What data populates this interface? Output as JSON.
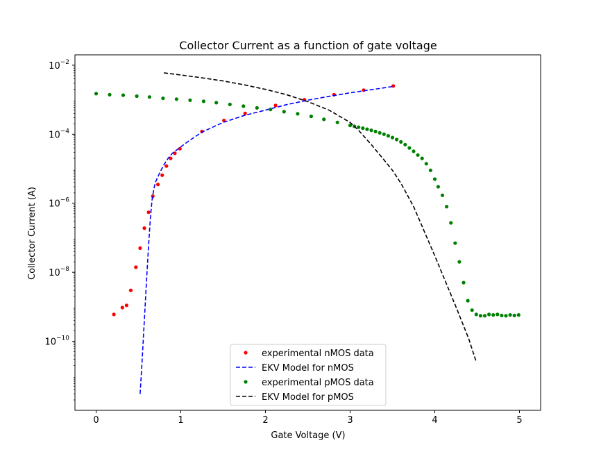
{
  "chart_data": {
    "type": "scatter",
    "title": "Collector Current as a function of gate voltage",
    "xlabel": "Gate Voltage (V)",
    "ylabel": "Collector Current (A)",
    "xlim": [
      -0.25,
      5.25
    ],
    "ylim_log10": [
      -12.0,
      -1.7
    ],
    "yscale": "log",
    "grid": false,
    "legend_position": "lower-center",
    "x_ticks": [
      {
        "value": 0,
        "label": "0"
      },
      {
        "value": 1,
        "label": "1"
      },
      {
        "value": 2,
        "label": "2"
      },
      {
        "value": 3,
        "label": "3"
      },
      {
        "value": 4,
        "label": "4"
      },
      {
        "value": 5,
        "label": "5"
      }
    ],
    "y_ticks": [
      {
        "exp": -10,
        "base": "10",
        "sup": "−10"
      },
      {
        "exp": -8,
        "base": "10",
        "sup": "−8"
      },
      {
        "exp": -6,
        "base": "10",
        "sup": "−6"
      },
      {
        "exp": -4,
        "base": "10",
        "sup": "−4"
      },
      {
        "exp": -2,
        "base": "10",
        "sup": "−2"
      }
    ],
    "series": [
      {
        "name": "experimental nMOS data",
        "kind": "points",
        "color": "#ff0000",
        "x": [
          0.21,
          0.31,
          0.36,
          0.41,
          0.47,
          0.52,
          0.57,
          0.62,
          0.67,
          0.73,
          0.78,
          0.83,
          0.88,
          0.93,
          0.99,
          1.25,
          1.51,
          1.76,
          2.12,
          2.46,
          2.81,
          3.16,
          3.51
        ],
        "y": [
          6e-10,
          9.5e-10,
          1.1e-09,
          3e-09,
          1.4e-08,
          5e-08,
          1.9e-07,
          5.5e-07,
          1.6e-06,
          3.5e-06,
          6.5e-06,
          1.2e-05,
          2e-05,
          2.8e-05,
          3.8e-05,
          0.00012,
          0.00025,
          0.0004,
          0.00068,
          0.001,
          0.0014,
          0.0019,
          0.0025
        ]
      },
      {
        "name": "EKV Model for nMOS",
        "kind": "line",
        "dash": "dashed",
        "color": "#0000ff",
        "x": [
          0.52,
          0.54,
          0.56,
          0.58,
          0.6,
          0.62,
          0.64,
          0.66,
          0.68,
          0.7,
          0.75,
          0.8,
          0.85,
          0.9,
          1.0,
          1.1,
          1.25,
          1.5,
          1.75,
          2.0,
          2.25,
          2.5,
          2.75,
          3.0,
          3.25,
          3.5
        ],
        "y": [
          3e-12,
          2e-11,
          1.5e-10,
          1.2e-09,
          9e-09,
          6e-08,
          3.5e-07,
          1.2e-06,
          2.5e-06,
          4e-06,
          7.5e-06,
          1.3e-05,
          2e-05,
          2.8e-05,
          4.3e-05,
          6.5e-05,
          0.000115,
          0.00022,
          0.00035,
          0.0005,
          0.00072,
          0.00097,
          0.00125,
          0.00158,
          0.00195,
          0.0024
        ]
      },
      {
        "name": "experimental pMOS data",
        "kind": "points",
        "color": "#008000",
        "x": [
          0.0,
          0.16,
          0.32,
          0.48,
          0.63,
          0.79,
          0.95,
          1.11,
          1.27,
          1.42,
          1.58,
          1.74,
          1.9,
          2.06,
          2.22,
          2.38,
          2.54,
          2.69,
          2.85,
          3.0,
          3.05,
          3.1,
          3.15,
          3.2,
          3.25,
          3.3,
          3.35,
          3.4,
          3.45,
          3.5,
          3.55,
          3.6,
          3.65,
          3.7,
          3.75,
          3.8,
          3.85,
          3.9,
          3.95,
          4.0,
          4.04,
          4.09,
          4.14,
          4.19,
          4.24,
          4.29,
          4.34,
          4.39,
          4.44,
          4.49,
          4.54,
          4.59,
          4.64,
          4.69,
          4.74,
          4.79,
          4.84,
          4.89,
          4.94,
          4.99
        ],
        "y": [
          0.0015,
          0.0014,
          0.00135,
          0.00127,
          0.0012,
          0.0011,
          0.00104,
          0.00097,
          0.0009,
          0.00082,
          0.00073,
          0.00065,
          0.00058,
          0.00052,
          0.00045,
          0.00039,
          0.00033,
          0.00027,
          0.00022,
          0.00018,
          0.00017,
          0.00016,
          0.00015,
          0.00014,
          0.00013,
          0.00012,
          0.00011,
          0.0001,
          9e-05,
          8e-05,
          7e-05,
          6e-05,
          5e-05,
          4e-05,
          3.2e-05,
          2.5e-05,
          2e-05,
          1.4e-05,
          9e-06,
          5e-06,
          3e-06,
          1.7e-06,
          8e-07,
          2.7e-07,
          7e-08,
          2e-08,
          5e-09,
          1.5e-09,
          8e-10,
          6e-10,
          5.5e-10,
          5.5e-10,
          6e-10,
          5.8e-10,
          6e-10,
          5.6e-10,
          5.5e-10,
          5.8e-10,
          5.6e-10,
          5.8e-10
        ]
      },
      {
        "name": "EKV Model for pMOS",
        "kind": "line",
        "dash": "dashed",
        "color": "#000000",
        "x": [
          0.8,
          1.0,
          1.25,
          1.5,
          1.75,
          2.0,
          2.25,
          2.5,
          2.75,
          3.0,
          3.1,
          3.25,
          3.4,
          3.5,
          3.6,
          3.75,
          4.0,
          4.25,
          4.4,
          4.49
        ],
        "y": [
          0.006,
          0.0052,
          0.0043,
          0.0035,
          0.0027,
          0.002,
          0.0014,
          0.00088,
          0.0005,
          0.00022,
          0.00013,
          5e-05,
          1.8e-05,
          9e-06,
          3.8e-06,
          8e-07,
          3e-08,
          1e-09,
          1.2e-10,
          2.5e-11
        ]
      }
    ]
  }
}
